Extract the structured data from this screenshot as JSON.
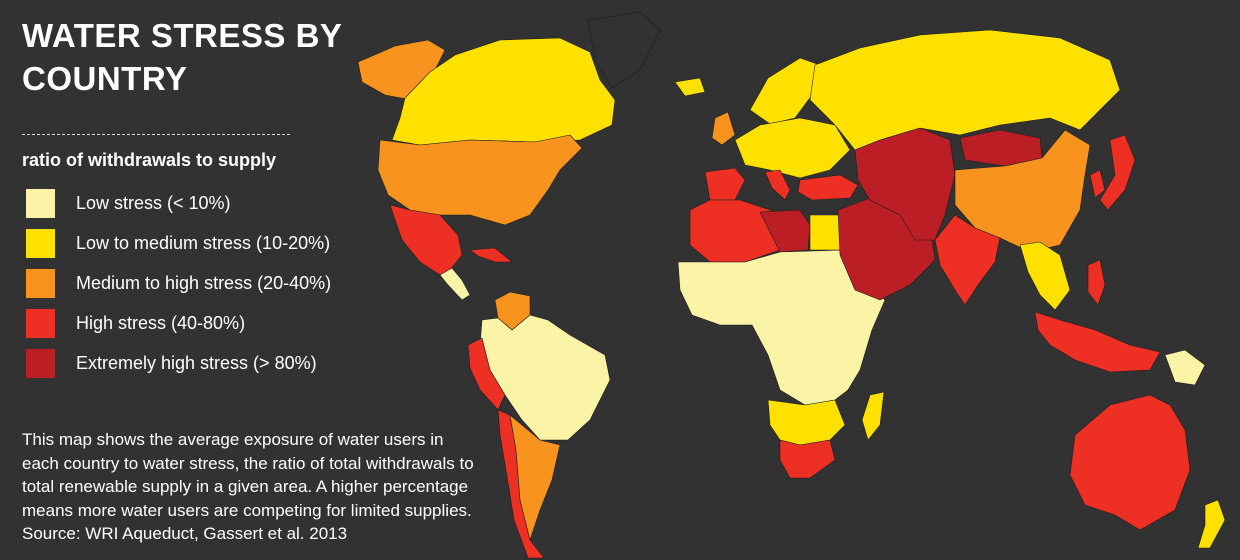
{
  "title": "WATER STRESS BY COUNTRY",
  "legend": {
    "title": "ratio of withdrawals to supply",
    "items": [
      {
        "key": "low",
        "label": "Low stress (< 10%)",
        "color": "#fbf3a6"
      },
      {
        "key": "lowmed",
        "label": "Low to medium stress (10-20%)",
        "color": "#ffe100"
      },
      {
        "key": "medhigh",
        "label": "Medium to high stress (20-40%)",
        "color": "#f8941d"
      },
      {
        "key": "high",
        "label": "High stress (40-80%)",
        "color": "#ee3024"
      },
      {
        "key": "extreme",
        "label": "Extremely high stress (> 80%)",
        "color": "#bb1e24"
      }
    ]
  },
  "note": "This map shows the average exposure of water users in each country to water stress, the ratio of total withdrawals to total renewable supply in a given area. A higher percentage means more water users are competing for limited supplies. Source: WRI Aqueduct, Gassert et al. 2013",
  "map": {
    "background_color": "#323232",
    "regions": [
      {
        "name": "alaska",
        "stress": "medhigh"
      },
      {
        "name": "canada",
        "stress": "lowmed"
      },
      {
        "name": "greenland",
        "stress": "none"
      },
      {
        "name": "usa",
        "stress": "medhigh"
      },
      {
        "name": "mexico",
        "stress": "high"
      },
      {
        "name": "central-america",
        "stress": "low"
      },
      {
        "name": "cuba",
        "stress": "high"
      },
      {
        "name": "venezuela",
        "stress": "medhigh"
      },
      {
        "name": "south-america",
        "stress": "low"
      },
      {
        "name": "peru",
        "stress": "high"
      },
      {
        "name": "chile",
        "stress": "high"
      },
      {
        "name": "argentina",
        "stress": "medhigh"
      },
      {
        "name": "iceland",
        "stress": "lowmed"
      },
      {
        "name": "uk",
        "stress": "medhigh"
      },
      {
        "name": "scandinavia",
        "stress": "lowmed"
      },
      {
        "name": "europe",
        "stress": "lowmed"
      },
      {
        "name": "iberia",
        "stress": "high"
      },
      {
        "name": "italy",
        "stress": "high"
      },
      {
        "name": "turkey",
        "stress": "high"
      },
      {
        "name": "russia",
        "stress": "lowmed"
      },
      {
        "name": "north-africa",
        "stress": "high"
      },
      {
        "name": "libya",
        "stress": "extreme"
      },
      {
        "name": "egypt",
        "stress": "lowmed"
      },
      {
        "name": "sub-saharan-africa",
        "stress": "low"
      },
      {
        "name": "southern-africa",
        "stress": "lowmed"
      },
      {
        "name": "south-africa",
        "stress": "high"
      },
      {
        "name": "madagascar",
        "stress": "lowmed"
      },
      {
        "name": "middle-east",
        "stress": "extreme"
      },
      {
        "name": "central-asia",
        "stress": "extreme"
      },
      {
        "name": "mongolia",
        "stress": "extreme"
      },
      {
        "name": "china",
        "stress": "medhigh"
      },
      {
        "name": "india",
        "stress": "high"
      },
      {
        "name": "southeast-asia",
        "stress": "lowmed"
      },
      {
        "name": "korea",
        "stress": "high"
      },
      {
        "name": "japan",
        "stress": "high"
      },
      {
        "name": "philippines",
        "stress": "high"
      },
      {
        "name": "indonesia",
        "stress": "high"
      },
      {
        "name": "papua-new-guinea",
        "stress": "low"
      },
      {
        "name": "australia",
        "stress": "high"
      },
      {
        "name": "new-zealand",
        "stress": "lowmed"
      }
    ]
  }
}
